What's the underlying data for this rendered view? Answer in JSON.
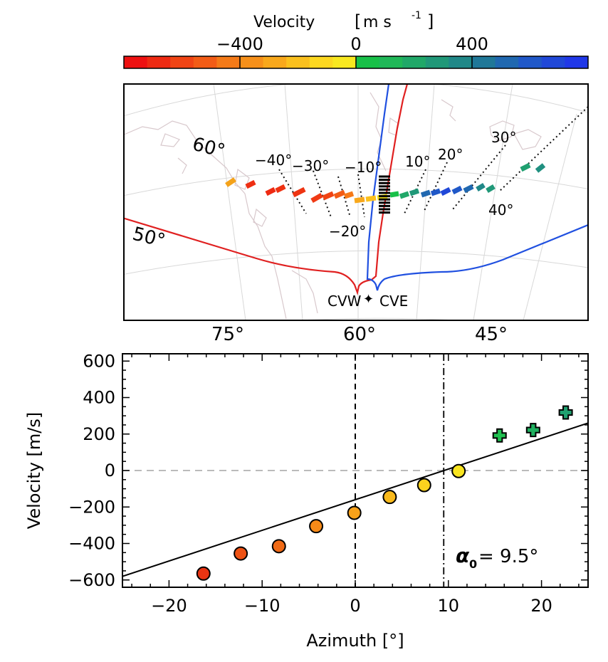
{
  "colorbar": {
    "title": "Velocity",
    "unit_base": "m s",
    "unit_exp": "-1",
    "tick_labels": [
      "−400",
      "0",
      "400"
    ],
    "tick_values": [
      -400,
      0,
      400
    ],
    "range": [
      -800,
      800
    ],
    "colors": [
      "#ee1111",
      "#ee2a12",
      "#f04414",
      "#f25c16",
      "#f47a18",
      "#f6901a",
      "#f8a81c",
      "#fac01e",
      "#fcd820",
      "#f8e820",
      "#18c048",
      "#20b858",
      "#20a868",
      "#209878",
      "#208888",
      "#207898",
      "#2068b0",
      "#2058c8",
      "#2048d8",
      "#2038e8"
    ]
  },
  "map": {
    "lon_labels": [
      "75°",
      "60°",
      "45°"
    ],
    "lat_labels": [
      "60°",
      "50°"
    ],
    "beam_labels": [
      "−40°",
      "−30°",
      "−20°",
      "−10°",
      "10°",
      "20°",
      "30°",
      "40°"
    ],
    "radar_west": "CVW",
    "radar_east": "CVE",
    "radar_west_color": "#e02020",
    "radar_east_color": "#2050e0",
    "marker_glyph": "✦"
  },
  "chart_data": {
    "type": "scatter",
    "xlabel": "Azimuth [°]",
    "ylabel": "Velocity [m/s]",
    "xlim": [
      -25,
      25
    ],
    "ylim": [
      -640,
      640
    ],
    "x_ticks": [
      -20,
      -10,
      0,
      10,
      20
    ],
    "y_ticks": [
      -600,
      -400,
      -200,
      0,
      200,
      400,
      600
    ],
    "x_tick_labels": [
      "−20",
      "−10",
      "0",
      "10",
      "20"
    ],
    "y_tick_labels": [
      "−600",
      "−400",
      "−200",
      "0",
      "200",
      "400",
      "600"
    ],
    "annotation_symbol": "α",
    "annotation_subscript": "0",
    "annotation_value": " = 9.5°",
    "alpha0": 9.5,
    "fit_line": {
      "slope": 16.8,
      "intercept": -160
    },
    "circles": {
      "x": [
        -16.3,
        -12.3,
        -8.2,
        -4.2,
        -0.1,
        3.7,
        7.4,
        11.1
      ],
      "y": [
        -565,
        -455,
        -415,
        -305,
        -232,
        -145,
        -80,
        -3
      ],
      "colors": [
        "#e83412",
        "#ee5214",
        "#f06a16",
        "#f68a18",
        "#f8a21a",
        "#faba1c",
        "#fcd21e",
        "#f8e420"
      ]
    },
    "crosses": {
      "x": [
        15.5,
        19.1,
        22.6
      ],
      "y": [
        192,
        222,
        318
      ],
      "colors": [
        "#20c050",
        "#20b060",
        "#20a070"
      ]
    },
    "grid": false
  }
}
